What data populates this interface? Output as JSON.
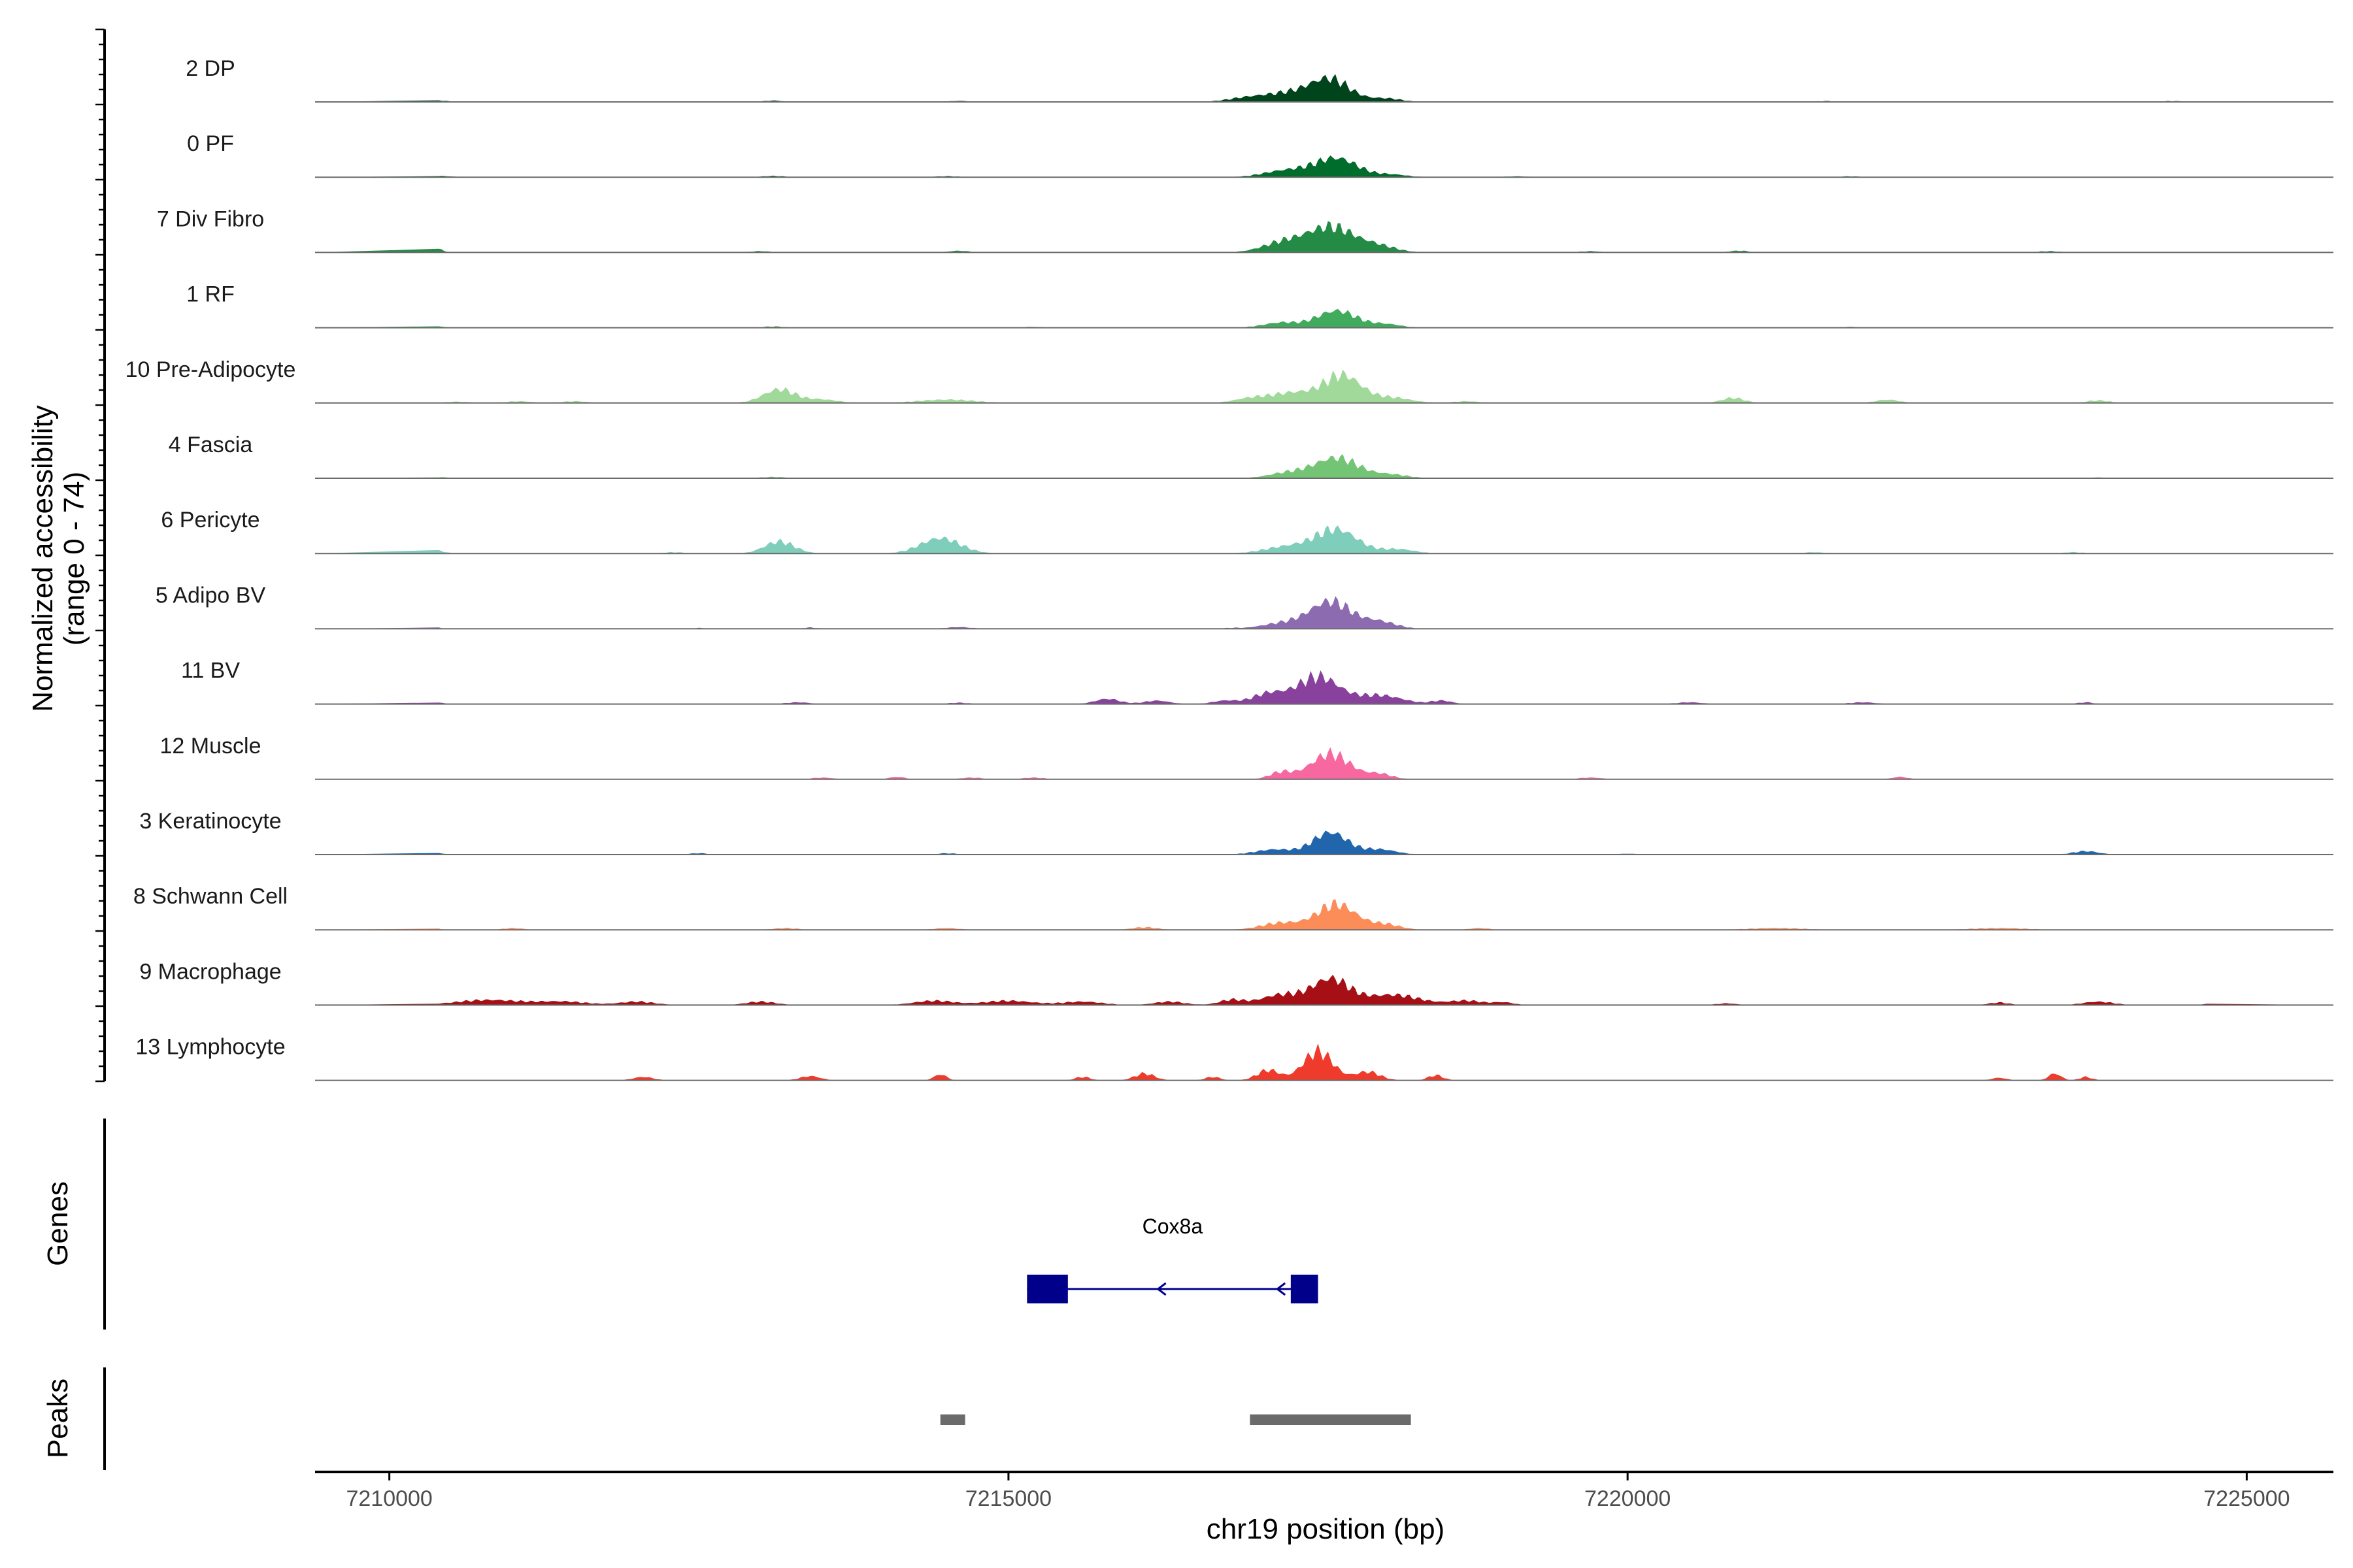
{
  "chart_data": {
    "type": "area",
    "chromosome": "chr19",
    "x_range": [
      7209400,
      7225700
    ],
    "coverage_y_range": [
      0,
      74
    ],
    "grid": false,
    "ylabel_line1": "Normalized accessibility",
    "ylabel_line2": "(range 0 - 74)",
    "xlabel": "chr19 position (bp)",
    "genes_label": "Genes",
    "peaks_label": "Peaks",
    "x_ticks": [
      {
        "value": 7210000,
        "label": "7210000"
      },
      {
        "value": 7215000,
        "label": "7215000"
      },
      {
        "value": 7220000,
        "label": "7220000"
      },
      {
        "value": 7225000,
        "label": "7225000"
      }
    ],
    "tracks": [
      {
        "name": "2 DP",
        "color": "#00441b",
        "peaks": [
          [
            7217600,
            25,
            160
          ],
          [
            7217250,
            10,
            220
          ],
          [
            7216900,
            3,
            150
          ],
          [
            7218050,
            4,
            120
          ],
          [
            7210350,
            2,
            100
          ],
          [
            7213100,
            1.5,
            80
          ],
          [
            7214600,
            1.2,
            80
          ],
          [
            7221600,
            1,
            80
          ],
          [
            7224400,
            1,
            80
          ]
        ]
      },
      {
        "name": "0 PF",
        "color": "#006d2c",
        "peaks": [
          [
            7217650,
            22,
            170
          ],
          [
            7217250,
            8,
            180
          ],
          [
            7218100,
            3,
            120
          ],
          [
            7210400,
            1.5,
            100
          ],
          [
            7213100,
            1.5,
            90
          ],
          [
            7214500,
            1.2,
            90
          ],
          [
            7219100,
            1,
            90
          ],
          [
            7221800,
            1,
            80
          ]
        ]
      },
      {
        "name": "7 Div Fibro",
        "color": "#238b45",
        "peaks": [
          [
            7217600,
            30,
            200
          ],
          [
            7217200,
            10,
            160
          ],
          [
            7218000,
            6,
            140
          ],
          [
            7210350,
            6,
            60
          ],
          [
            7214600,
            2,
            80
          ],
          [
            7219700,
            1.5,
            80
          ],
          [
            7220900,
            2,
            80
          ],
          [
            7223400,
            1.5,
            80
          ],
          [
            7213000,
            1.5,
            80
          ]
        ]
      },
      {
        "name": "1 RF",
        "color": "#41ab5d",
        "peaks": [
          [
            7217650,
            20,
            160
          ],
          [
            7217200,
            6,
            140
          ],
          [
            7218050,
            4,
            120
          ],
          [
            7210350,
            2,
            80
          ],
          [
            7213100,
            1.5,
            80
          ],
          [
            7215200,
            1,
            80
          ],
          [
            7221800,
            1,
            80
          ]
        ]
      },
      {
        "name": "10 Pre-Adipocyte",
        "color": "#a1d99b",
        "peaks": [
          [
            7217700,
            32,
            150
          ],
          [
            7217300,
            12,
            180
          ],
          [
            7216950,
            5,
            130
          ],
          [
            7218100,
            6,
            150
          ],
          [
            7213150,
            16,
            130
          ],
          [
            7213500,
            4,
            120
          ],
          [
            7214500,
            4,
            220
          ],
          [
            7211050,
            2,
            100
          ],
          [
            7211500,
            2,
            100
          ],
          [
            7210550,
            1.5,
            100
          ],
          [
            7220850,
            6,
            90
          ],
          [
            7222100,
            4,
            90
          ],
          [
            7223800,
            3,
            90
          ],
          [
            7218700,
            2,
            100
          ]
        ]
      },
      {
        "name": "4 Fascia",
        "color": "#74c476",
        "peaks": [
          [
            7217650,
            24,
            180
          ],
          [
            7217250,
            6,
            150
          ],
          [
            7218100,
            4,
            130
          ],
          [
            7210400,
            1.2,
            100
          ],
          [
            7213100,
            1.5,
            100
          ],
          [
            7223800,
            1,
            80
          ]
        ]
      },
      {
        "name": "6 Pericyte",
        "color": "#7fcdbb",
        "peaks": [
          [
            7217650,
            28,
            170
          ],
          [
            7217250,
            8,
            180
          ],
          [
            7218150,
            5,
            130
          ],
          [
            7213150,
            14,
            120
          ],
          [
            7214450,
            18,
            160
          ],
          [
            7210350,
            4,
            80
          ],
          [
            7212300,
            1.5,
            80
          ],
          [
            7221500,
            1.5,
            80
          ],
          [
            7223600,
            1.5,
            80
          ]
        ]
      },
      {
        "name": "5 Adipo BV",
        "color": "#8c6bb1",
        "peaks": [
          [
            7217600,
            32,
            170
          ],
          [
            7217200,
            6,
            160
          ],
          [
            7218000,
            8,
            130
          ],
          [
            7210350,
            2,
            60
          ],
          [
            7213400,
            1.5,
            60
          ],
          [
            7214600,
            2,
            100
          ],
          [
            7212500,
            1,
            60
          ],
          [
            7216800,
            1,
            60
          ]
        ]
      },
      {
        "name": "11 BV",
        "color": "#88419d",
        "peaks": [
          [
            7217500,
            32,
            170
          ],
          [
            7217100,
            12,
            130
          ],
          [
            7218000,
            10,
            180
          ],
          [
            7216750,
            4,
            100
          ],
          [
            7215800,
            6,
            100
          ],
          [
            7216200,
            4,
            100
          ],
          [
            7218500,
            4,
            80
          ],
          [
            7210350,
            3,
            60
          ],
          [
            7213300,
            2,
            90
          ],
          [
            7214600,
            1.5,
            80
          ],
          [
            7220500,
            2,
            100
          ],
          [
            7221900,
            2,
            100
          ],
          [
            7223700,
            2,
            60
          ]
        ]
      },
      {
        "name": "12 Muscle",
        "color": "#f768a1",
        "peaks": [
          [
            7217600,
            30,
            160
          ],
          [
            7217200,
            8,
            90
          ],
          [
            7218000,
            6,
            100
          ],
          [
            7213500,
            2,
            80
          ],
          [
            7214100,
            3,
            60
          ],
          [
            7214700,
            2,
            80
          ],
          [
            7215200,
            2,
            80
          ],
          [
            7219700,
            2,
            90
          ],
          [
            7222200,
            3,
            60
          ]
        ]
      },
      {
        "name": "3 Keratinocyte",
        "color": "#2166ac",
        "peaks": [
          [
            7217600,
            26,
            140
          ],
          [
            7217150,
            6,
            150
          ],
          [
            7218000,
            6,
            130
          ],
          [
            7210350,
            2,
            80
          ],
          [
            7212500,
            1.5,
            80
          ],
          [
            7214500,
            1.5,
            80
          ],
          [
            7220000,
            1,
            80
          ],
          [
            7223700,
            4,
            100
          ]
        ]
      },
      {
        "name": "8 Schwann Cell",
        "color": "#fc8d59",
        "peaks": [
          [
            7217650,
            30,
            160
          ],
          [
            7217200,
            8,
            160
          ],
          [
            7218050,
            6,
            120
          ],
          [
            7210350,
            2,
            60
          ],
          [
            7211000,
            2,
            80
          ],
          [
            7213200,
            2,
            100
          ],
          [
            7214500,
            2,
            100
          ],
          [
            7216100,
            3,
            100
          ],
          [
            7218800,
            2,
            80
          ],
          [
            7221200,
            2,
            220
          ],
          [
            7223000,
            2,
            220
          ]
        ]
      },
      {
        "name": "9 Macrophage",
        "color": "#a50f15",
        "peaks": [
          [
            7217600,
            30,
            150
          ],
          [
            7217200,
            12,
            160
          ],
          [
            7218100,
            12,
            220
          ],
          [
            7216800,
            6,
            100
          ],
          [
            7218700,
            5,
            140
          ],
          [
            7210800,
            6,
            260
          ],
          [
            7211400,
            4,
            200
          ],
          [
            7212000,
            4,
            140
          ],
          [
            7213000,
            4,
            120
          ],
          [
            7214400,
            5,
            160
          ],
          [
            7215000,
            5,
            200
          ],
          [
            7215600,
            4,
            160
          ],
          [
            7216300,
            4,
            120
          ],
          [
            7219000,
            3,
            80
          ],
          [
            7220800,
            2,
            80
          ],
          [
            7223000,
            3,
            80
          ],
          [
            7223800,
            4,
            120
          ],
          [
            7224700,
            1.5,
            60
          ]
        ]
      },
      {
        "name": "13 Lymphocyte",
        "color": "#ef3b2c",
        "peaks": [
          [
            7217500,
            34,
            120
          ],
          [
            7217100,
            12,
            90
          ],
          [
            7217900,
            10,
            100
          ],
          [
            7218450,
            6,
            60
          ],
          [
            7212050,
            4,
            80
          ],
          [
            7213400,
            5,
            80
          ],
          [
            7214450,
            7,
            50
          ],
          [
            7215600,
            4,
            60
          ],
          [
            7216100,
            8,
            80
          ],
          [
            7216650,
            4,
            60
          ],
          [
            7223000,
            3,
            60
          ],
          [
            7223450,
            8,
            50
          ],
          [
            7223700,
            4,
            50
          ]
        ]
      }
    ],
    "gene": {
      "name": "Cox8a",
      "start": 7215150,
      "end": 7217500,
      "strand": "-",
      "color": "#00008b",
      "exons": [
        [
          7215150,
          7215480
        ],
        [
          7217280,
          7217500
        ]
      ]
    },
    "peaks": [
      {
        "start": 7214450,
        "end": 7214650
      },
      {
        "start": 7216950,
        "end": 7218250
      }
    ],
    "peak_color": "#6b6b6b"
  }
}
